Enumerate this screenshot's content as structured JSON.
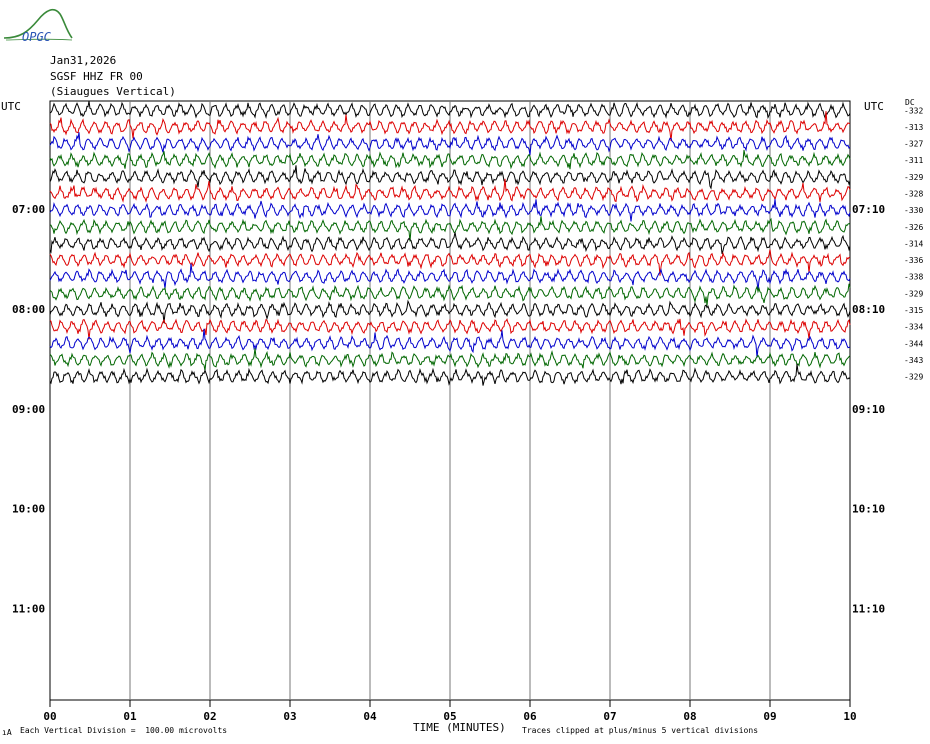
{
  "logo": {
    "text": "OPGC",
    "colors": {
      "green": "#3a8a3a",
      "blue": "#2a55b5"
    }
  },
  "header": {
    "date": "Jan31,2026",
    "station": "SGSF HHZ FR 00",
    "location": "(Siaugues Vertical)"
  },
  "chart_data": {
    "type": "seismogram",
    "left_axis_label": "UTC",
    "right_axis_label": "UTC",
    "dc_label": "DC",
    "left_time_labels": [
      "07:00",
      "08:00",
      "09:00",
      "10:00",
      "11:00"
    ],
    "right_time_labels": [
      "07:10",
      "08:10",
      "09:10",
      "10:10",
      "11:10"
    ],
    "time_label_rows": [
      6.5,
      12.5,
      18.5,
      24.5,
      30.5
    ],
    "x_ticks": [
      "00",
      "01",
      "02",
      "03",
      "04",
      "05",
      "06",
      "07",
      "08",
      "09",
      "10"
    ],
    "xlabel": "TIME (MINUTES)",
    "xlim": [
      0,
      10
    ],
    "total_rows": 36,
    "trace_colors": [
      "#000000",
      "#dd0000",
      "#0000cc",
      "#006600"
    ],
    "traces_dc": [
      -332,
      -313,
      -327,
      -311,
      -329,
      -328,
      -330,
      -326,
      -314,
      -336,
      -338,
      -329,
      -315,
      -334,
      -344,
      -343,
      -329
    ],
    "footer_left": "Each Vertical Division =  100.00 microvolts",
    "footer_right": "Traces clipped at plus/minus 5 vertical divisions",
    "corner_mark": "ıA"
  }
}
